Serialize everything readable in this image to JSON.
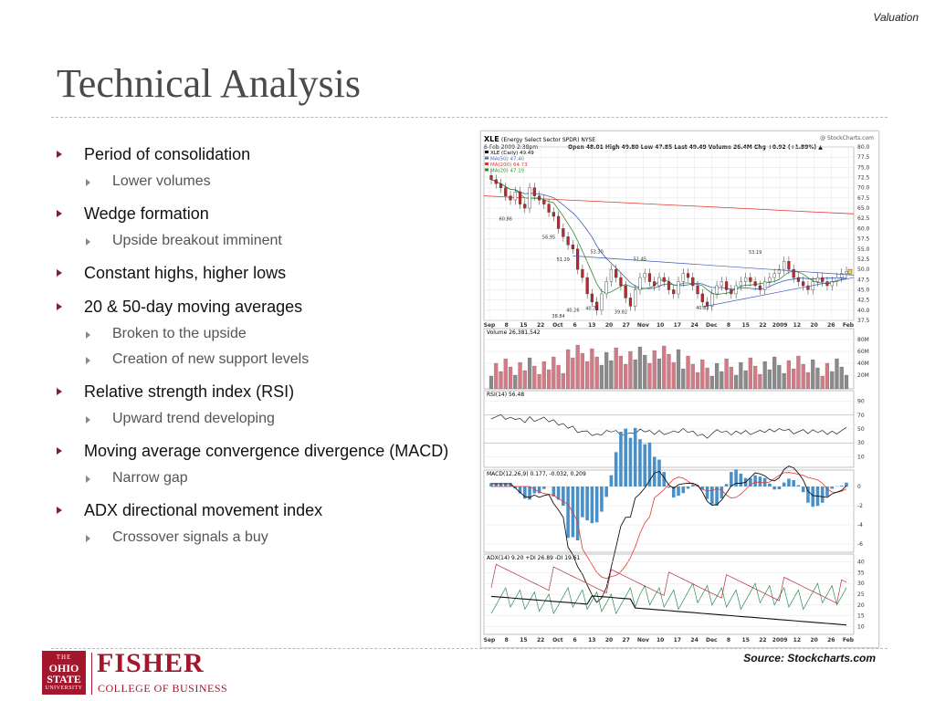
{
  "header": {
    "section_label": "Valuation",
    "title": "Technical Analysis"
  },
  "bullets": [
    {
      "text": "Period of consolidation",
      "subs": [
        "Lower volumes"
      ]
    },
    {
      "text": "Wedge formation",
      "subs": [
        "Upside breakout imminent"
      ]
    },
    {
      "text": "Constant highs, higher lows",
      "subs": []
    },
    {
      "text": "20 & 50-day moving averages",
      "subs": [
        "Broken to the upside",
        "Creation of new support levels"
      ]
    },
    {
      "text": "Relative strength index (RSI)",
      "subs": [
        "Upward trend developing"
      ]
    },
    {
      "text": "Moving average convergence divergence (MACD)",
      "subs": [
        "Narrow gap"
      ]
    },
    {
      "text": "ADX directional movement index",
      "subs": [
        "Crossover signals a buy"
      ]
    }
  ],
  "chart_header": {
    "ticker": "XLE",
    "name": "(Energy Select Sector SPDR)",
    "exchange": "NYSE",
    "brand": "@ StockCharts.com",
    "date": "6-Feb-2009 2:38pm",
    "quote": "Open 48.01  High 49.80  Low 47.85  Last 49.49  Volume 26.4M  Chg +0.92 (+1.89%) ▲",
    "legend": [
      {
        "label": "XLE (Daily) 49.49",
        "color": "#000000"
      },
      {
        "label": "MA(50) 47.40",
        "color": "#3b5bb5"
      },
      {
        "label": "MA(200) 64.73",
        "color": "#e2382e"
      },
      {
        "label": "MA(20) 47.19",
        "color": "#2e8b2e"
      }
    ],
    "volume_label": "Volume 26,381,542",
    "rsi_label": "RSI(14) 56.48",
    "macd_label": "MACD(12,26,9) 0.177, -0.032, 0.209",
    "adx_label": "ADX(14) 9.20  +DI 26.89  -DI 19.61"
  },
  "chart_data": {
    "type": "line",
    "x_ticks": [
      "Sep",
      "8",
      "15",
      "22",
      "Oct",
      "6",
      "13",
      "20",
      "27",
      "Nov",
      "10",
      "17",
      "24",
      "Dec",
      "8",
      "15",
      "22",
      "2009",
      "12",
      "20",
      "26",
      "Feb"
    ],
    "price_axis": [
      "80.0",
      "77.5",
      "75.0",
      "72.5",
      "70.0",
      "67.5",
      "65.0",
      "62.5",
      "60.0",
      "57.5",
      "55.0",
      "52.5",
      "50.0",
      "47.5",
      "45.0",
      "42.5",
      "40.0",
      "37.5"
    ],
    "price_annotations": [
      "60.86",
      "56.95",
      "51.29",
      "53.30",
      "51.45",
      "53.19",
      "40.26",
      "40.78",
      "38.84",
      "39.82",
      "40.83"
    ],
    "volume_axis": [
      "80M",
      "60M",
      "40M",
      "20M"
    ],
    "rsi_axis": [
      "90",
      "70",
      "50",
      "30",
      "10"
    ],
    "macd_axis": [
      "0",
      "-2",
      "-4",
      "-6"
    ],
    "adx_axis": [
      "40",
      "35",
      "30",
      "25",
      "20",
      "15",
      "10"
    ],
    "close": [
      72,
      71,
      70,
      68,
      67,
      69,
      66,
      65,
      70,
      68,
      67,
      66,
      64,
      63,
      60,
      58,
      56,
      55,
      50,
      48,
      44,
      42,
      40,
      44,
      47,
      50,
      48,
      46,
      43,
      41,
      45,
      48,
      49,
      47,
      46,
      48,
      47,
      45,
      44,
      47,
      49,
      48,
      46,
      44,
      42,
      41,
      44,
      46,
      47,
      45,
      44,
      46,
      47,
      48,
      47,
      46,
      45,
      47,
      48,
      49,
      50,
      52,
      50,
      48,
      47,
      46,
      45,
      47,
      48,
      47,
      46,
      47,
      48,
      49,
      49.5
    ]
  },
  "source": "Source: Stockcharts.com",
  "logo": {
    "seal_top": "THE",
    "seal_ohio": "OHIO",
    "seal_state": "STATE",
    "seal_univ": "UNIVERSITY",
    "name": "FISHER",
    "college": "COLLEGE OF BUSINESS"
  }
}
